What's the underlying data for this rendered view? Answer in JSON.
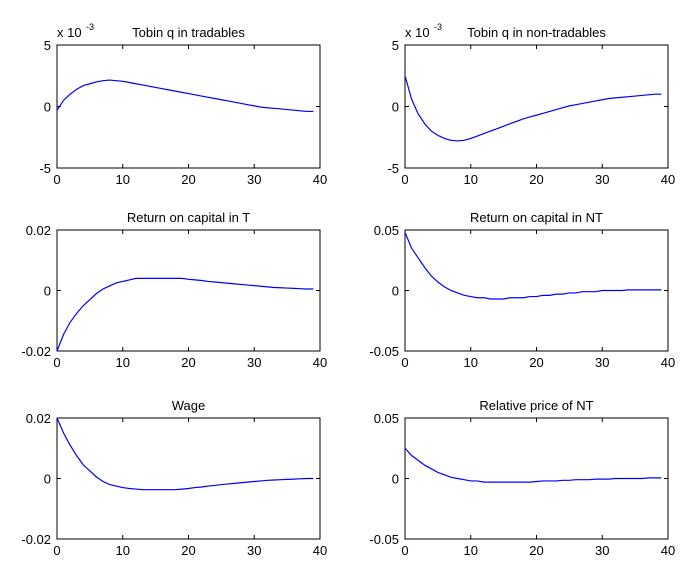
{
  "chart_data": [
    {
      "type": "line",
      "title": "Tobin q in tradables",
      "y_multiplier": "x 10",
      "y_multiplier_exp": "-3",
      "xlim": [
        0,
        40
      ],
      "ylim": [
        -5,
        5
      ],
      "xticks": [
        0,
        10,
        20,
        30,
        40
      ],
      "yticks": [
        -5,
        0,
        5
      ],
      "ytick_labels": [
        "-5",
        "0",
        "5"
      ],
      "line_color": "#0000ff",
      "series": [
        {
          "x": [
            0,
            1,
            2,
            3,
            4,
            5,
            6,
            7,
            8,
            9,
            10,
            11,
            12,
            13,
            14,
            15,
            16,
            17,
            18,
            19,
            20,
            21,
            22,
            23,
            24,
            25,
            26,
            27,
            28,
            29,
            30,
            31,
            32,
            33,
            34,
            35,
            36,
            37,
            38,
            39
          ],
          "y": [
            -0.3,
            0.5,
            1.0,
            1.4,
            1.7,
            1.85,
            2.0,
            2.1,
            2.15,
            2.1,
            2.05,
            1.95,
            1.85,
            1.75,
            1.65,
            1.55,
            1.45,
            1.35,
            1.25,
            1.15,
            1.05,
            0.95,
            0.85,
            0.75,
            0.65,
            0.55,
            0.45,
            0.35,
            0.25,
            0.15,
            0.05,
            -0.05,
            -0.1,
            -0.15,
            -0.2,
            -0.25,
            -0.3,
            -0.35,
            -0.4,
            -0.4
          ]
        }
      ]
    },
    {
      "type": "line",
      "title": "Tobin q in non-tradables",
      "y_multiplier": "x 10",
      "y_multiplier_exp": "-3",
      "xlim": [
        0,
        40
      ],
      "ylim": [
        -5,
        5
      ],
      "xticks": [
        0,
        10,
        20,
        30,
        40
      ],
      "yticks": [
        -5,
        0,
        5
      ],
      "ytick_labels": [
        "-5",
        "0",
        "5"
      ],
      "line_color": "#0000ff",
      "series": [
        {
          "x": [
            0,
            1,
            2,
            3,
            4,
            5,
            6,
            7,
            8,
            9,
            10,
            11,
            12,
            13,
            14,
            15,
            16,
            17,
            18,
            19,
            20,
            21,
            22,
            23,
            24,
            25,
            26,
            27,
            28,
            29,
            30,
            31,
            32,
            33,
            34,
            35,
            36,
            37,
            38,
            39
          ],
          "y": [
            2.5,
            0.6,
            -0.6,
            -1.4,
            -2.0,
            -2.35,
            -2.6,
            -2.75,
            -2.8,
            -2.75,
            -2.6,
            -2.4,
            -2.2,
            -2.0,
            -1.8,
            -1.6,
            -1.4,
            -1.2,
            -1.0,
            -0.85,
            -0.7,
            -0.55,
            -0.4,
            -0.25,
            -0.1,
            0.05,
            0.15,
            0.25,
            0.35,
            0.45,
            0.55,
            0.65,
            0.7,
            0.75,
            0.8,
            0.85,
            0.9,
            0.95,
            1.0,
            1.0
          ]
        }
      ]
    },
    {
      "type": "line",
      "title": "Return on capital in T",
      "xlim": [
        0,
        40
      ],
      "ylim": [
        -0.02,
        0.02
      ],
      "xticks": [
        0,
        10,
        20,
        30,
        40
      ],
      "yticks": [
        -0.02,
        0,
        0.02
      ],
      "ytick_labels": [
        "-0.02",
        "0",
        "0.02"
      ],
      "line_color": "#0000ff",
      "series": [
        {
          "x": [
            0,
            1,
            2,
            3,
            4,
            5,
            6,
            7,
            8,
            9,
            10,
            11,
            12,
            13,
            14,
            15,
            16,
            17,
            18,
            19,
            20,
            21,
            22,
            23,
            24,
            25,
            26,
            27,
            28,
            29,
            30,
            31,
            32,
            33,
            34,
            35,
            36,
            37,
            38,
            39
          ],
          "y": [
            -0.02,
            -0.0145,
            -0.0105,
            -0.0075,
            -0.005,
            -0.003,
            -0.001,
            0.0005,
            0.0015,
            0.0025,
            0.003,
            0.0035,
            0.004,
            0.004,
            0.004,
            0.004,
            0.004,
            0.004,
            0.004,
            0.004,
            0.0037,
            0.0035,
            0.0033,
            0.003,
            0.0028,
            0.0026,
            0.0024,
            0.0022,
            0.002,
            0.0018,
            0.0016,
            0.0014,
            0.0012,
            0.001,
            0.0009,
            0.0008,
            0.0007,
            0.0006,
            0.0005,
            0.0005
          ]
        }
      ]
    },
    {
      "type": "line",
      "title": "Return on capital in NT",
      "xlim": [
        0,
        40
      ],
      "ylim": [
        -0.05,
        0.05
      ],
      "xticks": [
        0,
        10,
        20,
        30,
        40
      ],
      "yticks": [
        -0.05,
        0,
        0.05
      ],
      "ytick_labels": [
        "-0.05",
        "0",
        "0.05"
      ],
      "line_color": "#0000ff",
      "series": [
        {
          "x": [
            0,
            1,
            2,
            3,
            4,
            5,
            6,
            7,
            8,
            9,
            10,
            11,
            12,
            13,
            14,
            15,
            16,
            17,
            18,
            19,
            20,
            21,
            22,
            23,
            24,
            25,
            26,
            27,
            28,
            29,
            30,
            31,
            32,
            33,
            34,
            35,
            36,
            37,
            38,
            39
          ],
          "y": [
            0.048,
            0.035,
            0.027,
            0.019,
            0.012,
            0.007,
            0.003,
            0.0,
            -0.002,
            -0.004,
            -0.005,
            -0.006,
            -0.006,
            -0.007,
            -0.007,
            -0.007,
            -0.006,
            -0.006,
            -0.006,
            -0.005,
            -0.005,
            -0.004,
            -0.004,
            -0.003,
            -0.003,
            -0.002,
            -0.002,
            -0.001,
            -0.001,
            -0.001,
            0.0,
            0.0,
            0.0,
            0.0,
            0.0005,
            0.0005,
            0.0005,
            0.0005,
            0.0005,
            0.0005
          ]
        }
      ]
    },
    {
      "type": "line",
      "title": "Wage",
      "xlim": [
        0,
        40
      ],
      "ylim": [
        -0.02,
        0.02
      ],
      "xticks": [
        0,
        10,
        20,
        30,
        40
      ],
      "yticks": [
        -0.02,
        0,
        0.02
      ],
      "ytick_labels": [
        "-0.02",
        "0",
        "0.02"
      ],
      "line_color": "#0000ff",
      "series": [
        {
          "x": [
            0,
            1,
            2,
            3,
            4,
            5,
            6,
            7,
            8,
            9,
            10,
            11,
            12,
            13,
            14,
            15,
            16,
            17,
            18,
            19,
            20,
            21,
            22,
            23,
            24,
            25,
            26,
            27,
            28,
            29,
            30,
            31,
            32,
            33,
            34,
            35,
            36,
            37,
            38,
            39
          ],
          "y": [
            0.02,
            0.015,
            0.011,
            0.0075,
            0.0045,
            0.0025,
            0.0005,
            -0.001,
            -0.002,
            -0.0025,
            -0.003,
            -0.0033,
            -0.0035,
            -0.0037,
            -0.0037,
            -0.0037,
            -0.0037,
            -0.0037,
            -0.0037,
            -0.0035,
            -0.0033,
            -0.003,
            -0.0028,
            -0.0025,
            -0.0023,
            -0.002,
            -0.0018,
            -0.0016,
            -0.0014,
            -0.0012,
            -0.001,
            -0.0008,
            -0.0006,
            -0.0005,
            -0.0004,
            -0.0003,
            -0.0002,
            -0.0001,
            0.0,
            0.0
          ]
        }
      ]
    },
    {
      "type": "line",
      "title": "Relative price of NT",
      "xlim": [
        0,
        40
      ],
      "ylim": [
        -0.05,
        0.05
      ],
      "xticks": [
        0,
        10,
        20,
        30,
        40
      ],
      "yticks": [
        -0.05,
        0,
        0.05
      ],
      "ytick_labels": [
        "-0.05",
        "0",
        "0.05"
      ],
      "line_color": "#0000ff",
      "series": [
        {
          "x": [
            0,
            1,
            2,
            3,
            4,
            5,
            6,
            7,
            8,
            9,
            10,
            11,
            12,
            13,
            14,
            15,
            16,
            17,
            18,
            19,
            20,
            21,
            22,
            23,
            24,
            25,
            26,
            27,
            28,
            29,
            30,
            31,
            32,
            33,
            34,
            35,
            36,
            37,
            38,
            39
          ],
          "y": [
            0.025,
            0.019,
            0.015,
            0.011,
            0.008,
            0.005,
            0.003,
            0.001,
            0.0,
            -0.001,
            -0.002,
            -0.002,
            -0.003,
            -0.003,
            -0.003,
            -0.003,
            -0.003,
            -0.003,
            -0.003,
            -0.003,
            -0.0025,
            -0.002,
            -0.002,
            -0.002,
            -0.0015,
            -0.0015,
            -0.001,
            -0.001,
            -0.001,
            -0.0005,
            -0.0005,
            -0.0005,
            0.0,
            0.0,
            0.0,
            0.0,
            0.0,
            0.0005,
            0.0005,
            0.0005
          ]
        }
      ]
    }
  ]
}
